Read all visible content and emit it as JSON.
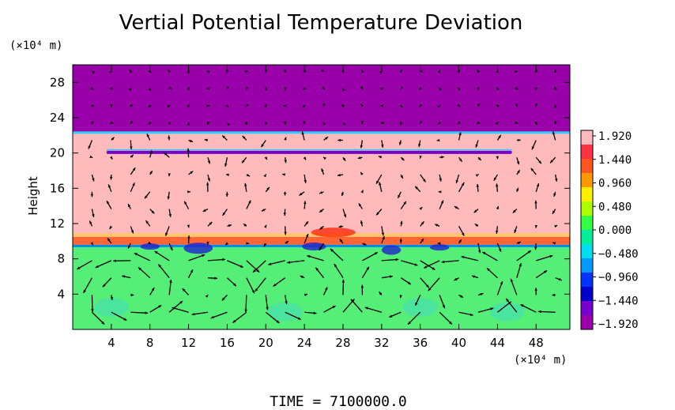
{
  "chart_data": {
    "type": "heatmap",
    "title": "Vertial Potential Temperature Deviation",
    "ylabel": "Height",
    "y_unit": "(×10⁴ m)",
    "x_unit": "(×10⁴ m)",
    "xticks": [
      4,
      8,
      12,
      16,
      20,
      24,
      28,
      32,
      36,
      40,
      44,
      48
    ],
    "yticks": [
      4,
      8,
      12,
      16,
      20,
      24,
      28
    ],
    "xlim": [
      0,
      51.5
    ],
    "ylim": [
      0,
      30
    ],
    "colorbar": {
      "labels": [
        "1.920",
        "1.440",
        "0.960",
        "0.480",
        "0.000",
        "−0.480",
        "−0.960",
        "−1.440",
        "−1.920"
      ],
      "colors": [
        "#ff3344",
        "#ff5522",
        "#ff9900",
        "#ffee00",
        "#aaff00",
        "#33ff44",
        "#00ee99",
        "#00ddee",
        "#0099ff",
        "#0033ff",
        "#0000cc",
        "#7700cc"
      ],
      "top_color": "#ffbbbb",
      "bottom_color": "#9900aa"
    },
    "layers": [
      {
        "name": "upper",
        "y_from": 22.3,
        "y_to": 30,
        "value": -1.92,
        "color": "#9900aa"
      },
      {
        "name": "middle",
        "y_from": 10.5,
        "y_to": 22.3,
        "value": 1.92,
        "color": "#ffbbbb"
      },
      {
        "name": "lower",
        "y_from": 0,
        "y_to": 9.6,
        "value": 0.0,
        "color": "#55ee77"
      }
    ],
    "vector_field": "wind arrows",
    "footer": "TIME  =  7100000.0"
  }
}
